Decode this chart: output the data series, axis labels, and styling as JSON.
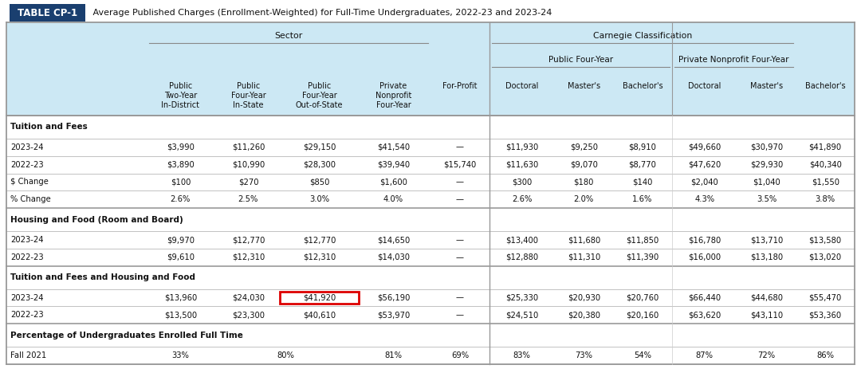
{
  "title_label": "TABLE CP-1",
  "title_text": " Average Published Charges (Enrollment-Weighted) for Full-Time Undergraduates, 2022-23 and 2023-24",
  "bg_color": "#ffffff",
  "header_bg": "#cce8f4",
  "title_label_bg": "#1a3f6f",
  "title_label_color": "#ffffff",
  "red_box_color": "#dd0000",
  "border_color": "#999999",
  "divider_color": "#aaaaaa",
  "col_widths_rel": [
    1.55,
    0.75,
    0.75,
    0.82,
    0.82,
    0.65,
    0.72,
    0.65,
    0.65,
    0.72,
    0.65,
    0.65
  ],
  "columns": [
    "",
    "Public\nTwo-Year\nIn-District",
    "Public\nFour-Year\nIn-State",
    "Public\nFour-Year\nOut-of-State",
    "Private\nNonprofit\nFour-Year",
    "For-Profit",
    "Doctoral",
    "Master's",
    "Bachelor's",
    "Doctoral",
    "Master's",
    "Bachelor's"
  ],
  "rows": [
    {
      "label": "Tuition and Fees",
      "type": "section",
      "values": [
        "",
        "",
        "",
        "",
        "",
        "",
        "",
        "",
        "",
        "",
        ""
      ]
    },
    {
      "label": "2023-24",
      "type": "data",
      "values": [
        "$3,990",
        "$11,260",
        "$29,150",
        "$41,540",
        "—",
        "$11,930",
        "$9,250",
        "$8,910",
        "$49,660",
        "$30,970",
        "$41,890"
      ]
    },
    {
      "label": "2022-23",
      "type": "data",
      "values": [
        "$3,890",
        "$10,990",
        "$28,300",
        "$39,940",
        "$15,740",
        "$11,630",
        "$9,070",
        "$8,770",
        "$47,620",
        "$29,930",
        "$40,340"
      ]
    },
    {
      "label": "$ Change",
      "type": "data",
      "values": [
        "$100",
        "$270",
        "$850",
        "$1,600",
        "—",
        "$300",
        "$180",
        "$140",
        "$2,040",
        "$1,040",
        "$1,550"
      ]
    },
    {
      "label": "% Change",
      "type": "data",
      "values": [
        "2.6%",
        "2.5%",
        "3.0%",
        "4.0%",
        "—",
        "2.6%",
        "2.0%",
        "1.6%",
        "4.3%",
        "3.5%",
        "3.8%"
      ]
    },
    {
      "label": "Housing and Food (Room and Board)",
      "type": "section",
      "values": [
        "",
        "",
        "",
        "",
        "",
        "",
        "",
        "",
        "",
        "",
        ""
      ]
    },
    {
      "label": "2023-24",
      "type": "data",
      "values": [
        "$9,970",
        "$12,770",
        "$12,770",
        "$14,650",
        "—",
        "$13,400",
        "$11,680",
        "$11,850",
        "$16,780",
        "$13,710",
        "$13,580"
      ]
    },
    {
      "label": "2022-23",
      "type": "data",
      "values": [
        "$9,610",
        "$12,310",
        "$12,310",
        "$14,030",
        "—",
        "$12,880",
        "$11,310",
        "$11,390",
        "$16,000",
        "$13,180",
        "$13,020"
      ]
    },
    {
      "label": "Tuition and Fees and Housing and Food",
      "type": "section",
      "values": [
        "",
        "",
        "",
        "",
        "",
        "",
        "",
        "",
        "",
        "",
        ""
      ]
    },
    {
      "label": "2023-24",
      "type": "data",
      "highlight_cols": [
        3,
        4
      ],
      "values": [
        "$13,960",
        "$24,030",
        "$41,920",
        "$56,190",
        "—",
        "$25,330",
        "$20,930",
        "$20,760",
        "$66,440",
        "$44,680",
        "$55,470"
      ]
    },
    {
      "label": "2022-23",
      "type": "data",
      "values": [
        "$13,500",
        "$23,300",
        "$40,610",
        "$53,970",
        "—",
        "$24,510",
        "$20,380",
        "$20,160",
        "$63,620",
        "$43,110",
        "$53,360"
      ]
    },
    {
      "label": "Percentage of Undergraduates Enrolled Full Time",
      "type": "section",
      "values": [
        "",
        "",
        "",
        "",
        "",
        "",
        "",
        "",
        "",
        "",
        ""
      ]
    },
    {
      "label": "Fall 2021",
      "type": "data_pct",
      "values": [
        "33%",
        "80%",
        "81%",
        "69%",
        "83%",
        "73%",
        "54%",
        "87%",
        "72%",
        "86%",
        ""
      ]
    }
  ]
}
